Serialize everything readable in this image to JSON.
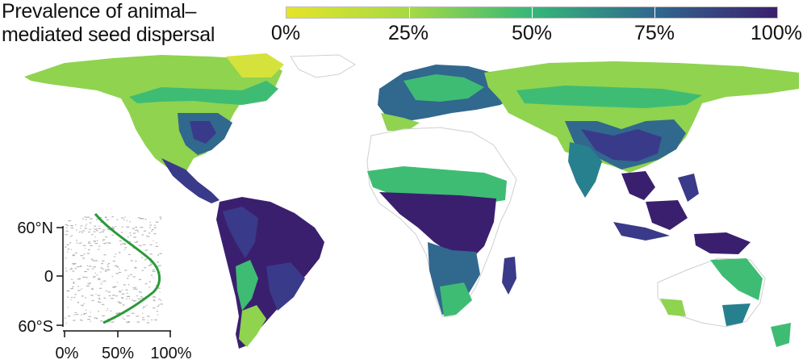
{
  "legend": {
    "title_line1": "Prevalence of animal–",
    "title_line2": "mediated seed dispersal",
    "ticks": [
      "0%",
      "25%",
      "50%",
      "75%",
      "100%"
    ],
    "colors": [
      "#e5e42a",
      "#a6d944",
      "#35b779",
      "#31688e",
      "#3b1f6f"
    ]
  },
  "inset": {
    "y_ticks": [
      "60°N",
      "0",
      "60°S"
    ],
    "x_ticks": [
      "0%",
      "50%",
      "100%"
    ],
    "curve_color": "#2a9a38",
    "points_color": "#9e9e9e"
  },
  "map": {
    "palette": {
      "low": "#d5e23b",
      "lowmid": "#8fd34f",
      "mid": "#3fbc73",
      "midhigh": "#27808e",
      "high": "#3a3a8a",
      "veryhigh": "#3b1f6f"
    }
  }
}
